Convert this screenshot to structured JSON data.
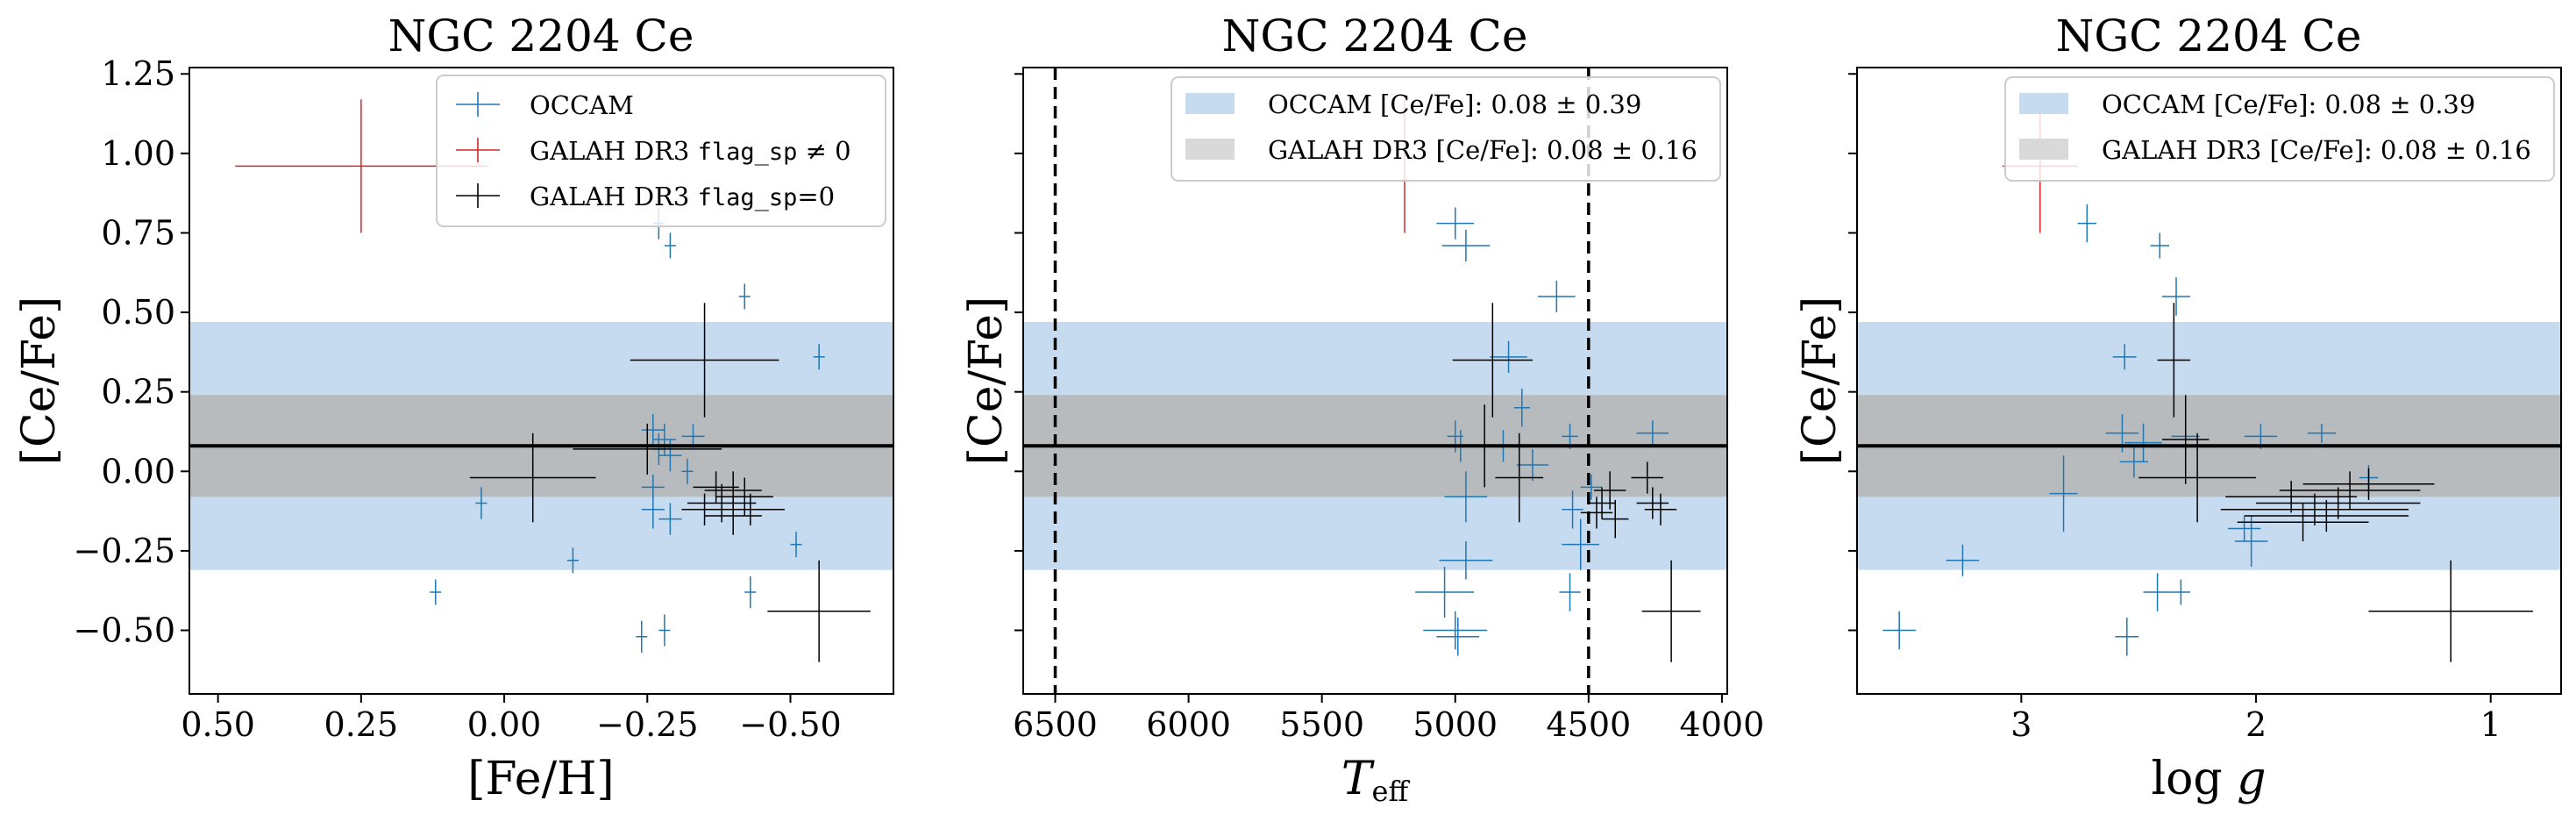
{
  "colors": {
    "occam": "#1f77b4",
    "galah_flag": "#d62728",
    "galah_ok": "#000000",
    "occam_band": "#c6dbef",
    "galah_band": "#b5b5b5"
  },
  "chart_data": [
    {
      "type": "scatter",
      "title": "NGC 2204 Ce",
      "xlabel": "[Fe/H]",
      "ylabel": "[Ce/Fe]",
      "xlim": [
        0.55,
        -0.68
      ],
      "ylim": [
        -0.7,
        1.27
      ],
      "x_ticks": [
        0.5,
        0.25,
        0.0,
        -0.25,
        -0.5
      ],
      "x_tick_labels": [
        "0.50",
        "0.25",
        "0.00",
        "−0.25",
        "−0.50"
      ],
      "y_ticks": [
        -0.5,
        -0.25,
        0.0,
        0.25,
        0.5,
        0.75,
        1.0,
        1.25
      ],
      "y_tick_labels": [
        "−0.50",
        "−0.25",
        "0.00",
        "0.25",
        "0.50",
        "0.75",
        "1.00",
        "1.25"
      ],
      "legend_placement": "upper right",
      "legend": [
        {
          "label": "OCCAM",
          "color": "#1f77b4"
        },
        {
          "label": "GALAH DR3 flag_sp ≠ 0",
          "color": "#d62728"
        },
        {
          "label": "GALAH DR3 flag_sp=0",
          "color": "#000000"
        }
      ],
      "reference_line": 0.08,
      "bands": [
        {
          "center": 0.08,
          "halfwidth": 0.39,
          "color": "#c6dbef"
        },
        {
          "center": 0.08,
          "halfwidth": 0.16,
          "color": "#b5b5b5"
        }
      ],
      "series": [
        {
          "name": "OCCAM",
          "color": "#1f77b4",
          "points": [
            [
              -0.27,
              0.78,
              0.01,
              0.05
            ],
            [
              -0.29,
              0.71,
              0.01,
              0.04
            ],
            [
              -0.42,
              0.55,
              0.01,
              0.04
            ],
            [
              -0.55,
              0.36,
              0.01,
              0.04
            ],
            [
              -0.26,
              0.13,
              0.02,
              0.05
            ],
            [
              -0.28,
              0.1,
              0.02,
              0.05
            ],
            [
              -0.27,
              0.07,
              0.01,
              0.05
            ],
            [
              -0.29,
              0.05,
              0.02,
              0.05
            ],
            [
              -0.33,
              0.11,
              0.02,
              0.04
            ],
            [
              -0.32,
              0.0,
              0.01,
              0.04
            ],
            [
              -0.26,
              -0.05,
              0.02,
              0.04
            ],
            [
              -0.29,
              -0.15,
              0.02,
              0.05
            ],
            [
              -0.26,
              -0.12,
              0.02,
              0.06
            ],
            [
              0.04,
              -0.1,
              0.01,
              0.05
            ],
            [
              -0.51,
              -0.23,
              0.01,
              0.04
            ],
            [
              -0.12,
              -0.28,
              0.01,
              0.04
            ],
            [
              0.12,
              -0.38,
              0.01,
              0.04
            ],
            [
              -0.43,
              -0.38,
              0.01,
              0.05
            ],
            [
              -0.24,
              -0.52,
              0.01,
              0.05
            ],
            [
              -0.28,
              -0.5,
              0.01,
              0.05
            ]
          ]
        },
        {
          "name": "GALAH DR3 flag_sp ≠ 0",
          "color": "#d62728",
          "points": [
            [
              0.25,
              0.96,
              0.22,
              0.21
            ]
          ]
        },
        {
          "name": "GALAH DR3 flag_sp=0",
          "color": "#000000",
          "points": [
            [
              -0.35,
              0.35,
              0.13,
              0.18
            ],
            [
              -0.25,
              0.07,
              0.13,
              0.08
            ],
            [
              -0.05,
              -0.02,
              0.11,
              0.14
            ],
            [
              -0.37,
              -0.05,
              0.04,
              0.05
            ],
            [
              -0.4,
              -0.06,
              0.05,
              0.06
            ],
            [
              -0.42,
              -0.08,
              0.05,
              0.06
            ],
            [
              -0.38,
              -0.1,
              0.06,
              0.06
            ],
            [
              -0.35,
              -0.12,
              0.04,
              0.05
            ],
            [
              -0.43,
              -0.12,
              0.06,
              0.05
            ],
            [
              -0.4,
              -0.14,
              0.05,
              0.06
            ],
            [
              -0.55,
              -0.44,
              0.09,
              0.16
            ]
          ]
        }
      ]
    },
    {
      "type": "scatter",
      "title": "NGC 2204 Ce",
      "xlabel": "T_eff",
      "ylabel": "[Ce/Fe]",
      "xlim": [
        6620,
        3980
      ],
      "ylim": [
        -0.7,
        1.27
      ],
      "x_ticks": [
        6500,
        6000,
        5500,
        5000,
        4500,
        4000
      ],
      "x_tick_labels": [
        "6500",
        "6000",
        "5500",
        "5000",
        "4500",
        "4000"
      ],
      "vertical_lines": [
        6500,
        4500
      ],
      "legend_placement": "upper right",
      "legend": [
        {
          "label": "OCCAM [Ce/Fe]: 0.08 ± 0.39",
          "color": "#c6dbef"
        },
        {
          "label": "GALAH DR3 [Ce/Fe]: 0.08 ± 0.16",
          "color": "#b5b5b5"
        }
      ],
      "reference_line": 0.08,
      "bands": [
        {
          "center": 0.08,
          "halfwidth": 0.39,
          "color": "#c6dbef"
        },
        {
          "center": 0.08,
          "halfwidth": 0.16,
          "color": "#b5b5b5"
        }
      ],
      "series": [
        {
          "name": "OCCAM",
          "color": "#1f77b4",
          "points": [
            [
              5000,
              0.78,
              70,
              0.05
            ],
            [
              4960,
              0.71,
              90,
              0.05
            ],
            [
              4620,
              0.55,
              70,
              0.05
            ],
            [
              4800,
              0.36,
              70,
              0.05
            ],
            [
              4750,
              0.2,
              30,
              0.06
            ],
            [
              5000,
              0.11,
              30,
              0.05
            ],
            [
              4980,
              0.08,
              30,
              0.05
            ],
            [
              4820,
              0.08,
              40,
              0.05
            ],
            [
              4570,
              0.11,
              30,
              0.04
            ],
            [
              4260,
              0.12,
              60,
              0.04
            ],
            [
              4710,
              0.02,
              60,
              0.05
            ],
            [
              4490,
              -0.05,
              40,
              0.04
            ],
            [
              4560,
              -0.12,
              40,
              0.06
            ],
            [
              4960,
              -0.08,
              80,
              0.08
            ],
            [
              4530,
              -0.23,
              70,
              0.08
            ],
            [
              4960,
              -0.28,
              100,
              0.06
            ],
            [
              5040,
              -0.38,
              110,
              0.08
            ],
            [
              4570,
              -0.38,
              40,
              0.06
            ],
            [
              5000,
              -0.5,
              120,
              0.06
            ],
            [
              4990,
              -0.52,
              80,
              0.06
            ]
          ]
        },
        {
          "name": "GALAH DR3 flag_sp ≠ 0",
          "color": "#d62728",
          "points": [
            [
              5190,
              0.96,
              0,
              0.21
            ]
          ]
        },
        {
          "name": "GALAH DR3 flag_sp=0",
          "color": "#000000",
          "points": [
            [
              4860,
              0.35,
              150,
              0.18
            ],
            [
              4890,
              0.08,
              150,
              0.13
            ],
            [
              4760,
              -0.02,
              90,
              0.14
            ],
            [
              4280,
              -0.02,
              60,
              0.05
            ],
            [
              4420,
              -0.06,
              60,
              0.06
            ],
            [
              4260,
              -0.1,
              60,
              0.05
            ],
            [
              4450,
              -0.1,
              50,
              0.05
            ],
            [
              4470,
              -0.13,
              60,
              0.05
            ],
            [
              4400,
              -0.15,
              50,
              0.06
            ],
            [
              4230,
              -0.12,
              60,
              0.05
            ],
            [
              4190,
              -0.44,
              110,
              0.16
            ]
          ]
        }
      ]
    },
    {
      "type": "scatter",
      "title": "NGC 2204 Ce",
      "xlabel": "log g",
      "ylabel": "[Ce/Fe]",
      "xlim": [
        3.7,
        0.7
      ],
      "ylim": [
        -0.7,
        1.27
      ],
      "x_ticks": [
        3,
        2,
        1
      ],
      "x_tick_labels": [
        "3",
        "2",
        "1"
      ],
      "legend_placement": "upper right",
      "legend": [
        {
          "label": "OCCAM [Ce/Fe]: 0.08 ± 0.39",
          "color": "#c6dbef"
        },
        {
          "label": "GALAH DR3 [Ce/Fe]: 0.08 ± 0.16",
          "color": "#b5b5b5"
        }
      ],
      "reference_line": 0.08,
      "bands": [
        {
          "center": 0.08,
          "halfwidth": 0.39,
          "color": "#c6dbef"
        },
        {
          "center": 0.08,
          "halfwidth": 0.16,
          "color": "#b5b5b5"
        }
      ],
      "series": [
        {
          "name": "OCCAM",
          "color": "#1f77b4",
          "points": [
            [
              2.72,
              0.78,
              0.04,
              0.06
            ],
            [
              2.41,
              0.71,
              0.04,
              0.04
            ],
            [
              2.34,
              0.55,
              0.06,
              0.06
            ],
            [
              2.56,
              0.36,
              0.05,
              0.04
            ],
            [
              2.57,
              0.12,
              0.07,
              0.06
            ],
            [
              2.48,
              0.09,
              0.08,
              0.06
            ],
            [
              2.3,
              0.11,
              0.06,
              0.05
            ],
            [
              1.98,
              0.11,
              0.07,
              0.04
            ],
            [
              1.72,
              0.12,
              0.06,
              0.03
            ],
            [
              2.52,
              0.03,
              0.06,
              0.05
            ],
            [
              1.52,
              -0.02,
              0.04,
              0.04
            ],
            [
              2.82,
              -0.07,
              0.06,
              0.12
            ],
            [
              2.05,
              -0.18,
              0.07,
              0.04
            ],
            [
              2.02,
              -0.22,
              0.07,
              0.08
            ],
            [
              3.25,
              -0.28,
              0.07,
              0.05
            ],
            [
              2.42,
              -0.38,
              0.06,
              0.06
            ],
            [
              2.32,
              -0.38,
              0.04,
              0.04
            ],
            [
              2.55,
              -0.52,
              0.05,
              0.06
            ],
            [
              3.52,
              -0.5,
              0.07,
              0.06
            ]
          ]
        },
        {
          "name": "GALAH DR3 flag_sp ≠ 0",
          "color": "#d62728",
          "points": [
            [
              2.92,
              0.96,
              0.16,
              0.21
            ]
          ]
        },
        {
          "name": "GALAH DR3 flag_sp=0",
          "color": "#000000",
          "points": [
            [
              2.35,
              0.35,
              0.07,
              0.18
            ],
            [
              2.3,
              0.1,
              0.1,
              0.14
            ],
            [
              2.25,
              -0.02,
              0.25,
              0.14
            ],
            [
              1.52,
              -0.04,
              0.28,
              0.05
            ],
            [
              1.6,
              -0.06,
              0.3,
              0.06
            ],
            [
              1.85,
              -0.08,
              0.28,
              0.05
            ],
            [
              1.65,
              -0.1,
              0.35,
              0.05
            ],
            [
              1.75,
              -0.12,
              0.4,
              0.05
            ],
            [
              1.7,
              -0.14,
              0.35,
              0.05
            ],
            [
              1.8,
              -0.16,
              0.28,
              0.06
            ],
            [
              1.17,
              -0.44,
              0.35,
              0.16
            ]
          ]
        }
      ]
    }
  ]
}
